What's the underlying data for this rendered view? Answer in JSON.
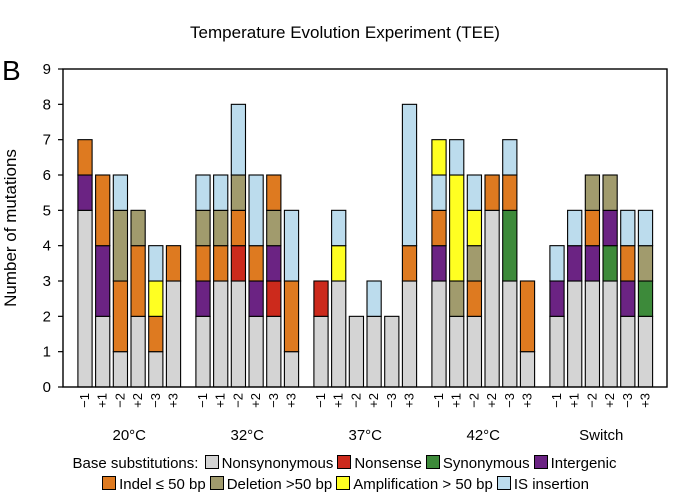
{
  "chart_data": {
    "type": "bar",
    "stacked": true,
    "title": "Temperature Evolution Experiment (TEE)",
    "panel_label": "B",
    "ylabel": "Number of mutations",
    "xlabel": "",
    "ylim": [
      0,
      9
    ],
    "yticks": [
      0,
      1,
      2,
      3,
      4,
      5,
      6,
      7,
      8,
      9
    ],
    "grid": false,
    "legend": {
      "placement": "bottom",
      "prefix": "Base substitutions:",
      "rows": [
        [
          "nonsyn",
          "nonsense",
          "syn",
          "intergenic"
        ],
        [
          "indel",
          "deletion",
          "amplification",
          "is"
        ]
      ]
    },
    "categories": [
      {
        "key": "nonsyn",
        "name": "Nonsynonymous",
        "color": "#d4d4d4"
      },
      {
        "key": "nonsense",
        "name": "Nonsense",
        "color": "#cc2a1c"
      },
      {
        "key": "syn",
        "name": "Synonymous",
        "color": "#3d8a3a"
      },
      {
        "key": "intergenic",
        "name": "Intergenic",
        "color": "#6b2383"
      },
      {
        "key": "indel",
        "name": "Indel ≤ 50 bp",
        "color": "#de7a20"
      },
      {
        "key": "deletion",
        "name": "Deletion >50 bp",
        "color": "#a19b6d"
      },
      {
        "key": "amplification",
        "name": "Amplification > 50 bp",
        "color": "#ffff22"
      },
      {
        "key": "is",
        "name": "IS insertion",
        "color": "#bcdced"
      }
    ],
    "groups": [
      {
        "name": "20°C",
        "bars": [
          {
            "label": "−1",
            "segments": [
              [
                "nonsyn",
                5
              ],
              [
                "intergenic",
                1
              ],
              [
                "indel",
                1
              ]
            ]
          },
          {
            "label": "+1",
            "segments": [
              [
                "nonsyn",
                2
              ],
              [
                "intergenic",
                2
              ],
              [
                "indel",
                2
              ]
            ]
          },
          {
            "label": "−2",
            "segments": [
              [
                "nonsyn",
                1
              ],
              [
                "indel",
                2
              ],
              [
                "deletion",
                2
              ],
              [
                "is",
                1
              ]
            ]
          },
          {
            "label": "+2",
            "segments": [
              [
                "nonsyn",
                2
              ],
              [
                "indel",
                2
              ],
              [
                "deletion",
                1
              ]
            ]
          },
          {
            "label": "−3",
            "segments": [
              [
                "nonsyn",
                1
              ],
              [
                "indel",
                1
              ],
              [
                "amplification",
                1
              ],
              [
                "is",
                1
              ]
            ]
          },
          {
            "label": "+3",
            "segments": [
              [
                "nonsyn",
                3
              ],
              [
                "indel",
                1
              ]
            ]
          }
        ]
      },
      {
        "name": "32°C",
        "bars": [
          {
            "label": "−1",
            "segments": [
              [
                "nonsyn",
                2
              ],
              [
                "intergenic",
                1
              ],
              [
                "indel",
                1
              ],
              [
                "deletion",
                1
              ],
              [
                "is",
                1
              ]
            ]
          },
          {
            "label": "+1",
            "segments": [
              [
                "nonsyn",
                3
              ],
              [
                "indel",
                1
              ],
              [
                "deletion",
                1
              ],
              [
                "is",
                1
              ]
            ]
          },
          {
            "label": "−2",
            "segments": [
              [
                "nonsyn",
                3
              ],
              [
                "nonsense",
                1
              ],
              [
                "indel",
                1
              ],
              [
                "deletion",
                1
              ],
              [
                "is",
                2
              ]
            ]
          },
          {
            "label": "+2",
            "segments": [
              [
                "nonsyn",
                2
              ],
              [
                "intergenic",
                1
              ],
              [
                "indel",
                1
              ],
              [
                "is",
                2
              ]
            ]
          },
          {
            "label": "−3",
            "segments": [
              [
                "nonsyn",
                2
              ],
              [
                "nonsense",
                1
              ],
              [
                "intergenic",
                1
              ],
              [
                "deletion",
                1
              ],
              [
                "indel",
                1
              ]
            ]
          },
          {
            "label": "+3",
            "segments": [
              [
                "nonsyn",
                1
              ],
              [
                "indel",
                2
              ],
              [
                "is",
                2
              ]
            ]
          }
        ]
      },
      {
        "name": "37°C",
        "bars": [
          {
            "label": "−1",
            "segments": [
              [
                "nonsyn",
                2
              ],
              [
                "nonsense",
                1
              ]
            ]
          },
          {
            "label": "+1",
            "segments": [
              [
                "nonsyn",
                3
              ],
              [
                "amplification",
                1
              ],
              [
                "is",
                1
              ]
            ]
          },
          {
            "label": "−2",
            "segments": [
              [
                "nonsyn",
                2
              ]
            ]
          },
          {
            "label": "+2",
            "segments": [
              [
                "nonsyn",
                2
              ],
              [
                "is",
                1
              ]
            ]
          },
          {
            "label": "−3",
            "segments": [
              [
                "nonsyn",
                2
              ]
            ]
          },
          {
            "label": "+3",
            "segments": [
              [
                "nonsyn",
                3
              ],
              [
                "indel",
                1
              ],
              [
                "is",
                4
              ]
            ]
          }
        ]
      },
      {
        "name": "42°C",
        "bars": [
          {
            "label": "−1",
            "segments": [
              [
                "nonsyn",
                3
              ],
              [
                "intergenic",
                1
              ],
              [
                "indel",
                1
              ],
              [
                "is",
                1
              ],
              [
                "amplification",
                1
              ]
            ]
          },
          {
            "label": "+1",
            "segments": [
              [
                "nonsyn",
                2
              ],
              [
                "deletion",
                1
              ],
              [
                "amplification",
                3
              ],
              [
                "is",
                1
              ]
            ]
          },
          {
            "label": "−2",
            "segments": [
              [
                "nonsyn",
                2
              ],
              [
                "indel",
                1
              ],
              [
                "deletion",
                1
              ],
              [
                "amplification",
                1
              ],
              [
                "is",
                1
              ]
            ]
          },
          {
            "label": "+2",
            "segments": [
              [
                "nonsyn",
                5
              ],
              [
                "indel",
                1
              ]
            ]
          },
          {
            "label": "−3",
            "segments": [
              [
                "nonsyn",
                3
              ],
              [
                "syn",
                2
              ],
              [
                "indel",
                1
              ],
              [
                "is",
                1
              ]
            ]
          },
          {
            "label": "+3",
            "segments": [
              [
                "nonsyn",
                1
              ],
              [
                "indel",
                2
              ]
            ]
          }
        ]
      },
      {
        "name": "Switch",
        "bars": [
          {
            "label": "−1",
            "segments": [
              [
                "nonsyn",
                2
              ],
              [
                "intergenic",
                1
              ],
              [
                "is",
                1
              ]
            ]
          },
          {
            "label": "+1",
            "segments": [
              [
                "nonsyn",
                3
              ],
              [
                "intergenic",
                1
              ],
              [
                "is",
                1
              ]
            ]
          },
          {
            "label": "−2",
            "segments": [
              [
                "nonsyn",
                3
              ],
              [
                "intergenic",
                1
              ],
              [
                "indel",
                1
              ],
              [
                "deletion",
                1
              ]
            ]
          },
          {
            "label": "+2",
            "segments": [
              [
                "nonsyn",
                3
              ],
              [
                "syn",
                1
              ],
              [
                "intergenic",
                1
              ],
              [
                "deletion",
                1
              ]
            ]
          },
          {
            "label": "−3",
            "segments": [
              [
                "nonsyn",
                2
              ],
              [
                "intergenic",
                1
              ],
              [
                "indel",
                1
              ],
              [
                "is",
                1
              ]
            ]
          },
          {
            "label": "+3",
            "segments": [
              [
                "nonsyn",
                2
              ],
              [
                "syn",
                1
              ],
              [
                "deletion",
                1
              ],
              [
                "is",
                1
              ]
            ]
          }
        ]
      }
    ]
  }
}
